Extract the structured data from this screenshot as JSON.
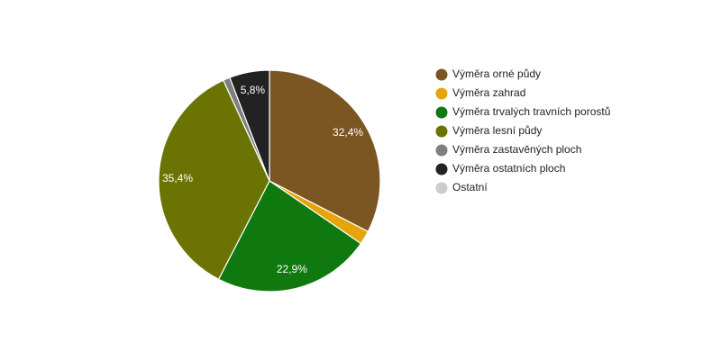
{
  "chart_data": {
    "type": "pie",
    "legend_position": "right",
    "slices": [
      {
        "name": "Výměra orné půdy",
        "value": 32.4,
        "label": "32,4%",
        "color": "#7b5522"
      },
      {
        "name": "Výměra zahrad",
        "value": 2.0,
        "label": "",
        "color": "#e5a50a"
      },
      {
        "name": "Výměra trvalých travních porostů",
        "value": 22.9,
        "label": "22,9%",
        "color": "#0f780f"
      },
      {
        "name": "Výměra lesní půdy",
        "value": 35.4,
        "label": "35,4%",
        "color": "#6b7403"
      },
      {
        "name": "Výměra zastavěných ploch",
        "value": 1.0,
        "label": "",
        "color": "#7f7f7f"
      },
      {
        "name": "Výměra ostatních ploch",
        "value": 5.8,
        "label": "5,8%",
        "color": "#222222"
      },
      {
        "name": "Ostatní",
        "value": 0.0,
        "label": "",
        "color": "#cccccc"
      }
    ]
  }
}
